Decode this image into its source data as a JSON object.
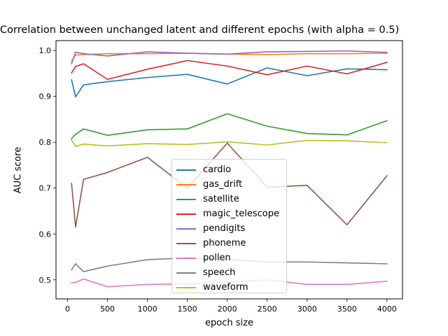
{
  "chart_data": {
    "type": "line",
    "title": "Correlation between unchanged latent and different epochs (with alpha = 0.5)",
    "xlabel": "epoch size",
    "ylabel": "AUC score",
    "xlim": [
      -145,
      4195
    ],
    "ylim": [
      0.4585,
      1.0215
    ],
    "xticks": [
      0,
      500,
      1000,
      1500,
      2000,
      2500,
      3000,
      3500,
      4000
    ],
    "yticks": [
      0.5,
      0.6,
      0.7,
      0.8,
      0.9,
      1.0
    ],
    "ytick_labels": [
      "0.5",
      "0.6",
      "0.7",
      "0.8",
      "0.9",
      "1.0"
    ],
    "grid": false,
    "legend_position": "lower center",
    "x": [
      50,
      100,
      200,
      500,
      1000,
      1500,
      2000,
      2500,
      3000,
      3500,
      4000
    ],
    "series": [
      {
        "name": "cardio",
        "color": "#1f77b4",
        "values": [
          0.936,
          0.899,
          0.925,
          0.932,
          0.941,
          0.948,
          0.927,
          0.962,
          0.945,
          0.96,
          0.958
        ]
      },
      {
        "name": "gas_drift",
        "color": "#ff7f0e",
        "values": [
          0.977,
          0.99,
          0.991,
          0.993,
          0.993,
          0.994,
          0.992,
          0.991,
          0.993,
          0.993,
          0.994
        ]
      },
      {
        "name": "satellite",
        "color": "#2ca02c",
        "values": [
          0.808,
          0.817,
          0.829,
          0.815,
          0.827,
          0.829,
          0.862,
          0.835,
          0.819,
          0.816,
          0.847
        ]
      },
      {
        "name": "magic_telescope",
        "color": "#d62728",
        "values": [
          0.951,
          0.965,
          0.971,
          0.937,
          0.959,
          0.978,
          0.966,
          0.947,
          0.966,
          0.949,
          0.974
        ]
      },
      {
        "name": "pendigits",
        "color": "#9467bd",
        "values": [
          0.971,
          0.996,
          0.993,
          0.988,
          0.997,
          0.994,
          0.992,
          0.997,
          0.998,
          0.999,
          0.996
        ]
      },
      {
        "name": "phoneme",
        "color": "#8c564b",
        "values": [
          0.71,
          0.615,
          0.719,
          0.734,
          0.767,
          0.7,
          0.798,
          0.702,
          0.706,
          0.62,
          0.727
        ]
      },
      {
        "name": "pollen",
        "color": "#e377c2",
        "values": [
          0.494,
          0.494,
          0.502,
          0.485,
          0.49,
          0.491,
          0.495,
          0.5,
          0.49,
          0.49,
          0.497
        ]
      },
      {
        "name": "speech",
        "color": "#7f7f7f",
        "values": [
          0.522,
          0.535,
          0.518,
          0.53,
          0.544,
          0.548,
          0.545,
          0.539,
          0.539,
          0.537,
          0.535
        ]
      },
      {
        "name": "waveform",
        "color": "#bcbd22",
        "values": [
          0.805,
          0.791,
          0.796,
          0.792,
          0.797,
          0.795,
          0.801,
          0.794,
          0.804,
          0.803,
          0.799
        ]
      }
    ]
  }
}
